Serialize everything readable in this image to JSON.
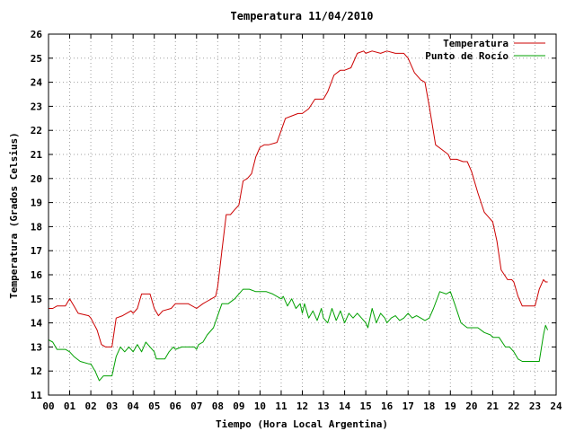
{
  "chart_data": {
    "type": "line",
    "title": "Temperatura 11/04/2010",
    "xlabel": "Tiempo (Hora Local Argentina)",
    "ylabel": "Temperatura (Grados Celsius)",
    "xlim": [
      0,
      24
    ],
    "ylim": [
      11,
      26
    ],
    "xticks": [
      "00",
      "01",
      "02",
      "03",
      "04",
      "05",
      "06",
      "07",
      "08",
      "09",
      "10",
      "11",
      "12",
      "13",
      "14",
      "15",
      "16",
      "17",
      "18",
      "19",
      "20",
      "21",
      "22",
      "23",
      "24"
    ],
    "yticks": [
      "11",
      "12",
      "13",
      "14",
      "15",
      "16",
      "17",
      "18",
      "19",
      "20",
      "21",
      "22",
      "23",
      "24",
      "25",
      "26"
    ],
    "grid": true,
    "legend_position": "top-right",
    "series": [
      {
        "name": "Temperatura",
        "color": "#cc0000",
        "x": [
          0,
          0.2,
          0.4,
          0.8,
          1.0,
          1.2,
          1.4,
          1.9,
          2.0,
          2.3,
          2.5,
          2.7,
          2.9,
          3.0,
          3.2,
          3.5,
          3.9,
          4.0,
          4.2,
          4.4,
          4.6,
          4.8,
          5.0,
          5.2,
          5.4,
          5.8,
          6.0,
          6.3,
          6.6,
          7.0,
          7.3,
          7.5,
          7.7,
          7.9,
          8.0,
          8.2,
          8.4,
          8.6,
          8.8,
          9.0,
          9.2,
          9.4,
          9.6,
          9.8,
          10.0,
          10.2,
          10.4,
          10.8,
          11.0,
          11.2,
          11.5,
          11.8,
          12.0,
          12.3,
          12.6,
          13.0,
          13.2,
          13.5,
          13.8,
          14.0,
          14.3,
          14.6,
          14.9,
          15.0,
          15.3,
          15.7,
          16.0,
          16.4,
          16.8,
          17.0,
          17.3,
          17.6,
          17.8,
          18.0,
          18.3,
          18.6,
          18.9,
          19.0,
          19.3,
          19.6,
          19.8,
          20.0,
          20.3,
          20.6,
          20.8,
          21.0,
          21.2,
          21.4,
          21.7,
          21.9,
          22.0,
          22.2,
          22.4,
          22.6,
          23.0,
          23.2,
          23.4,
          23.5,
          23.6
        ],
        "values": [
          14.6,
          14.6,
          14.7,
          14.7,
          15.0,
          14.7,
          14.4,
          14.3,
          14.2,
          13.7,
          13.1,
          13.0,
          13.0,
          13.0,
          14.2,
          14.3,
          14.5,
          14.4,
          14.6,
          15.2,
          15.2,
          15.2,
          14.6,
          14.3,
          14.5,
          14.6,
          14.8,
          14.8,
          14.8,
          14.6,
          14.8,
          14.9,
          15.0,
          15.1,
          15.5,
          17.0,
          18.5,
          18.5,
          18.7,
          18.9,
          19.9,
          20.0,
          20.2,
          20.9,
          21.3,
          21.4,
          21.4,
          21.5,
          22.0,
          22.5,
          22.6,
          22.7,
          22.7,
          22.9,
          23.3,
          23.3,
          23.6,
          24.3,
          24.5,
          24.5,
          24.6,
          25.2,
          25.3,
          25.2,
          25.3,
          25.2,
          25.3,
          25.2,
          25.2,
          25.0,
          24.4,
          24.1,
          24.0,
          23.0,
          21.4,
          21.2,
          21.0,
          20.8,
          20.8,
          20.7,
          20.7,
          20.3,
          19.4,
          18.6,
          18.4,
          18.2,
          17.4,
          16.2,
          15.8,
          15.8,
          15.7,
          15.1,
          14.7,
          14.7,
          14.7,
          15.4,
          15.8,
          15.7,
          15.7
        ]
      },
      {
        "name": "Punto de Rocío",
        "color": "#00a000",
        "x": [
          0,
          0.2,
          0.4,
          0.8,
          1.0,
          1.2,
          1.5,
          1.9,
          2.0,
          2.2,
          2.4,
          2.6,
          2.8,
          3.0,
          3.2,
          3.4,
          3.6,
          3.8,
          4.0,
          4.2,
          4.4,
          4.6,
          4.8,
          5.0,
          5.1,
          5.3,
          5.5,
          5.7,
          5.9,
          6.0,
          6.3,
          6.6,
          6.9,
          7.0,
          7.1,
          7.3,
          7.5,
          7.8,
          8.0,
          8.2,
          8.5,
          8.8,
          9.0,
          9.2,
          9.5,
          9.8,
          10.0,
          10.3,
          10.6,
          11.0,
          11.1,
          11.3,
          11.5,
          11.7,
          11.9,
          12.0,
          12.1,
          12.3,
          12.5,
          12.7,
          12.9,
          13.0,
          13.2,
          13.4,
          13.6,
          13.8,
          14.0,
          14.2,
          14.4,
          14.6,
          14.8,
          15.0,
          15.1,
          15.3,
          15.5,
          15.7,
          15.9,
          16.0,
          16.2,
          16.4,
          16.6,
          16.8,
          17.0,
          17.2,
          17.4,
          17.6,
          17.8,
          18.0,
          18.2,
          18.5,
          18.8,
          19.0,
          19.2,
          19.5,
          19.8,
          20.0,
          20.3,
          20.6,
          20.9,
          21.0,
          21.3,
          21.6,
          21.8,
          22.0,
          22.2,
          22.4,
          22.7,
          23.0,
          23.2,
          23.4,
          23.5,
          23.6
        ],
        "values": [
          13.3,
          13.2,
          12.9,
          12.9,
          12.8,
          12.6,
          12.4,
          12.3,
          12.3,
          12.0,
          11.6,
          11.8,
          11.8,
          11.8,
          12.6,
          13.0,
          12.8,
          13.0,
          12.8,
          13.1,
          12.8,
          13.2,
          13.0,
          12.8,
          12.5,
          12.5,
          12.5,
          12.8,
          13.0,
          12.9,
          13.0,
          13.0,
          13.0,
          12.9,
          13.1,
          13.2,
          13.5,
          13.8,
          14.3,
          14.8,
          14.8,
          15.0,
          15.2,
          15.4,
          15.4,
          15.3,
          15.3,
          15.3,
          15.2,
          15.0,
          15.1,
          14.7,
          15.0,
          14.6,
          14.8,
          14.4,
          14.8,
          14.2,
          14.5,
          14.1,
          14.6,
          14.2,
          14.0,
          14.6,
          14.1,
          14.5,
          14.0,
          14.4,
          14.2,
          14.4,
          14.2,
          14.0,
          13.8,
          14.6,
          14.0,
          14.4,
          14.2,
          14.0,
          14.2,
          14.3,
          14.1,
          14.2,
          14.4,
          14.2,
          14.3,
          14.2,
          14.1,
          14.2,
          14.6,
          15.3,
          15.2,
          15.3,
          14.8,
          14.0,
          13.8,
          13.8,
          13.8,
          13.6,
          13.5,
          13.4,
          13.4,
          13.0,
          13.0,
          12.8,
          12.5,
          12.4,
          12.4,
          12.4,
          12.4,
          13.5,
          13.9,
          13.7
        ]
      }
    ]
  }
}
